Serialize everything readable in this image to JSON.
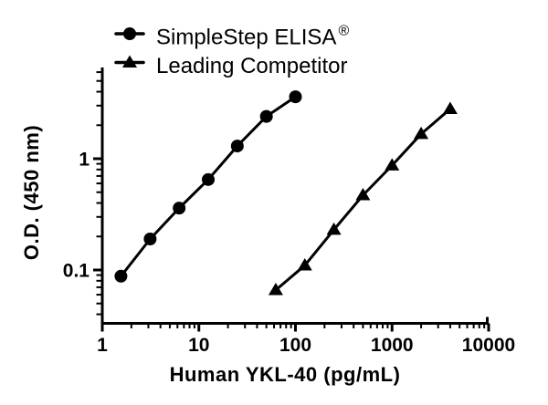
{
  "figure": {
    "background_color": "#ffffff",
    "ink_color": "#000000"
  },
  "legend": {
    "position": "top-left",
    "items": [
      {
        "label": "SimpleStep ELISA",
        "superscript": "®",
        "marker": "circle"
      },
      {
        "label": "Leading Competitor",
        "superscript": "",
        "marker": "triangle"
      }
    ]
  },
  "chart_data": {
    "type": "line",
    "title": "",
    "x_scale": "log",
    "y_scale": "log",
    "xlabel": "Human YKL-40 (pg/mL)",
    "ylabel": "O.D. (450 nm)",
    "xlim": [
      1,
      10000
    ],
    "ylim": [
      0.033,
      6.5
    ],
    "grid": false,
    "legend_position": "top-left",
    "x_major_ticks": [
      1,
      10,
      100,
      1000,
      10000
    ],
    "x_tick_labels": [
      "1",
      "10",
      "100",
      "1000",
      "10000"
    ],
    "y_major_ticks": [
      0.1,
      1
    ],
    "y_tick_labels": [
      "0.1",
      "1"
    ],
    "series": [
      {
        "name": "SimpleStep ELISA®",
        "marker": "circle",
        "color": "#000000",
        "x": [
          1.56,
          3.13,
          6.25,
          12.5,
          25,
          50,
          100
        ],
        "y": [
          0.088,
          0.19,
          0.36,
          0.65,
          1.3,
          2.4,
          3.6
        ]
      },
      {
        "name": "Leading Competitor",
        "marker": "triangle",
        "color": "#000000",
        "x": [
          62.5,
          125,
          250,
          500,
          1000,
          2000,
          4000
        ],
        "y": [
          0.066,
          0.11,
          0.23,
          0.47,
          0.87,
          1.67,
          2.8
        ]
      }
    ]
  }
}
